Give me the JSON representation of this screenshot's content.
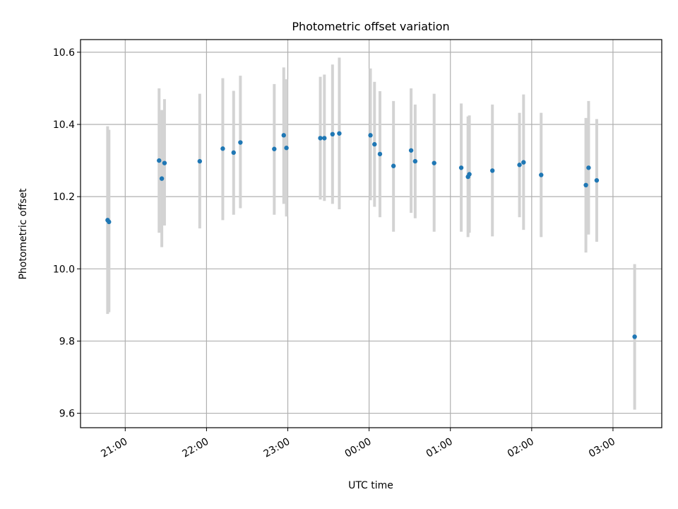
{
  "chart_data": {
    "type": "scatter",
    "title": "Photometric offset variation",
    "xlabel": "UTC time",
    "ylabel": "Photometric offset",
    "grid": true,
    "x_tick_labels": [
      "21:00",
      "22:00",
      "23:00",
      "00:00",
      "01:00",
      "02:00",
      "03:00"
    ],
    "y_tick_labels": [
      "9.6",
      "9.8",
      "10.0",
      "10.2",
      "10.4",
      "10.6"
    ],
    "y_ticks": [
      9.6,
      9.8,
      10.0,
      10.2,
      10.4,
      10.6
    ],
    "xlim": [
      "20:27",
      "03:36"
    ],
    "ylim": [
      9.56,
      10.635
    ],
    "errorbar_color": "#d3d3d3",
    "marker_color": "#1f77b4",
    "points": [
      {
        "t": "20:47",
        "y": 10.135,
        "lo": 9.875,
        "hi": 10.395
      },
      {
        "t": "20:48",
        "y": 10.13,
        "lo": 9.88,
        "hi": 10.385
      },
      {
        "t": "21:25",
        "y": 10.3,
        "lo": 10.1,
        "hi": 10.5
      },
      {
        "t": "21:27",
        "y": 10.25,
        "lo": 10.06,
        "hi": 10.44
      },
      {
        "t": "21:29",
        "y": 10.293,
        "lo": 10.12,
        "hi": 10.47
      },
      {
        "t": "21:55",
        "y": 10.298,
        "lo": 10.112,
        "hi": 10.485
      },
      {
        "t": "22:12",
        "y": 10.333,
        "lo": 10.135,
        "hi": 10.528
      },
      {
        "t": "22:20",
        "y": 10.322,
        "lo": 10.15,
        "hi": 10.493
      },
      {
        "t": "22:25",
        "y": 10.35,
        "lo": 10.168,
        "hi": 10.535
      },
      {
        "t": "22:50",
        "y": 10.332,
        "lo": 10.15,
        "hi": 10.512
      },
      {
        "t": "22:57",
        "y": 10.37,
        "lo": 10.18,
        "hi": 10.558
      },
      {
        "t": "22:59",
        "y": 10.335,
        "lo": 10.145,
        "hi": 10.525
      },
      {
        "t": "23:24",
        "y": 10.362,
        "lo": 10.192,
        "hi": 10.532
      },
      {
        "t": "23:27",
        "y": 10.362,
        "lo": 10.188,
        "hi": 10.538
      },
      {
        "t": "23:33",
        "y": 10.373,
        "lo": 10.18,
        "hi": 10.566
      },
      {
        "t": "23:38",
        "y": 10.375,
        "lo": 10.165,
        "hi": 10.585
      },
      {
        "t": "00:01",
        "y": 10.37,
        "lo": 10.19,
        "hi": 10.555
      },
      {
        "t": "00:04",
        "y": 10.345,
        "lo": 10.172,
        "hi": 10.518
      },
      {
        "t": "00:08",
        "y": 10.318,
        "lo": 10.143,
        "hi": 10.492
      },
      {
        "t": "00:18",
        "y": 10.285,
        "lo": 10.103,
        "hi": 10.465
      },
      {
        "t": "00:31",
        "y": 10.328,
        "lo": 10.155,
        "hi": 10.5
      },
      {
        "t": "00:34",
        "y": 10.298,
        "lo": 10.14,
        "hi": 10.455
      },
      {
        "t": "00:48",
        "y": 10.293,
        "lo": 10.103,
        "hi": 10.485
      },
      {
        "t": "01:08",
        "y": 10.28,
        "lo": 10.103,
        "hi": 10.458
      },
      {
        "t": "01:13",
        "y": 10.255,
        "lo": 10.088,
        "hi": 10.422
      },
      {
        "t": "01:14",
        "y": 10.262,
        "lo": 10.1,
        "hi": 10.425
      },
      {
        "t": "01:31",
        "y": 10.272,
        "lo": 10.09,
        "hi": 10.455
      },
      {
        "t": "01:51",
        "y": 10.288,
        "lo": 10.143,
        "hi": 10.432
      },
      {
        "t": "01:54",
        "y": 10.295,
        "lo": 10.108,
        "hi": 10.483
      },
      {
        "t": "02:07",
        "y": 10.26,
        "lo": 10.088,
        "hi": 10.432
      },
      {
        "t": "02:40",
        "y": 10.232,
        "lo": 10.045,
        "hi": 10.418
      },
      {
        "t": "02:42",
        "y": 10.28,
        "lo": 10.095,
        "hi": 10.465
      },
      {
        "t": "02:48",
        "y": 10.245,
        "lo": 10.075,
        "hi": 10.415
      },
      {
        "t": "03:16",
        "y": 9.812,
        "lo": 9.61,
        "hi": 10.013
      }
    ]
  }
}
